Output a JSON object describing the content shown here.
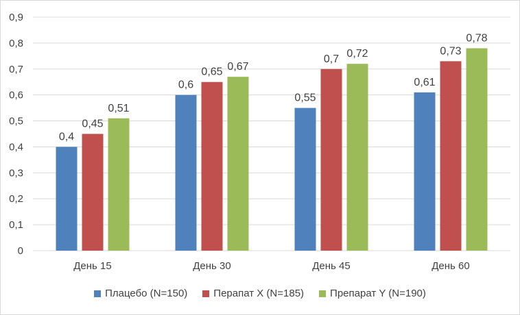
{
  "chart_data": {
    "type": "bar",
    "categories": [
      "День 15",
      "День 30",
      "День 45",
      "День 60"
    ],
    "series": [
      {
        "name": "Плацебо (N=150)",
        "color": "#4f81bd",
        "values": [
          0.4,
          0.6,
          0.55,
          0.61
        ],
        "labels": [
          "0,4",
          "0,6",
          "0,55",
          "0,61"
        ]
      },
      {
        "name": "Перапат X (N=185)",
        "color": "#c0504d",
        "values": [
          0.45,
          0.65,
          0.7,
          0.73
        ],
        "labels": [
          "0,45",
          "0,65",
          "0,7",
          "0,73"
        ]
      },
      {
        "name": "Препарат Y (N=190)",
        "color": "#9bbb59",
        "values": [
          0.51,
          0.67,
          0.72,
          0.78
        ],
        "labels": [
          "0,51",
          "0,67",
          "0,72",
          "0,78"
        ]
      }
    ],
    "ylim": [
      0,
      0.9
    ],
    "yticks": [
      {
        "value": 0,
        "label": "0"
      },
      {
        "value": 0.1,
        "label": "0,1"
      },
      {
        "value": 0.2,
        "label": "0,2"
      },
      {
        "value": 0.3,
        "label": "0,3"
      },
      {
        "value": 0.4,
        "label": "0,4"
      },
      {
        "value": 0.5,
        "label": "0,5"
      },
      {
        "value": 0.6,
        "label": "0,6"
      },
      {
        "value": 0.7,
        "label": "0,7"
      },
      {
        "value": 0.8,
        "label": "0,8"
      },
      {
        "value": 0.9,
        "label": "0,9"
      }
    ],
    "grid": true,
    "legend_position": "bottom"
  }
}
